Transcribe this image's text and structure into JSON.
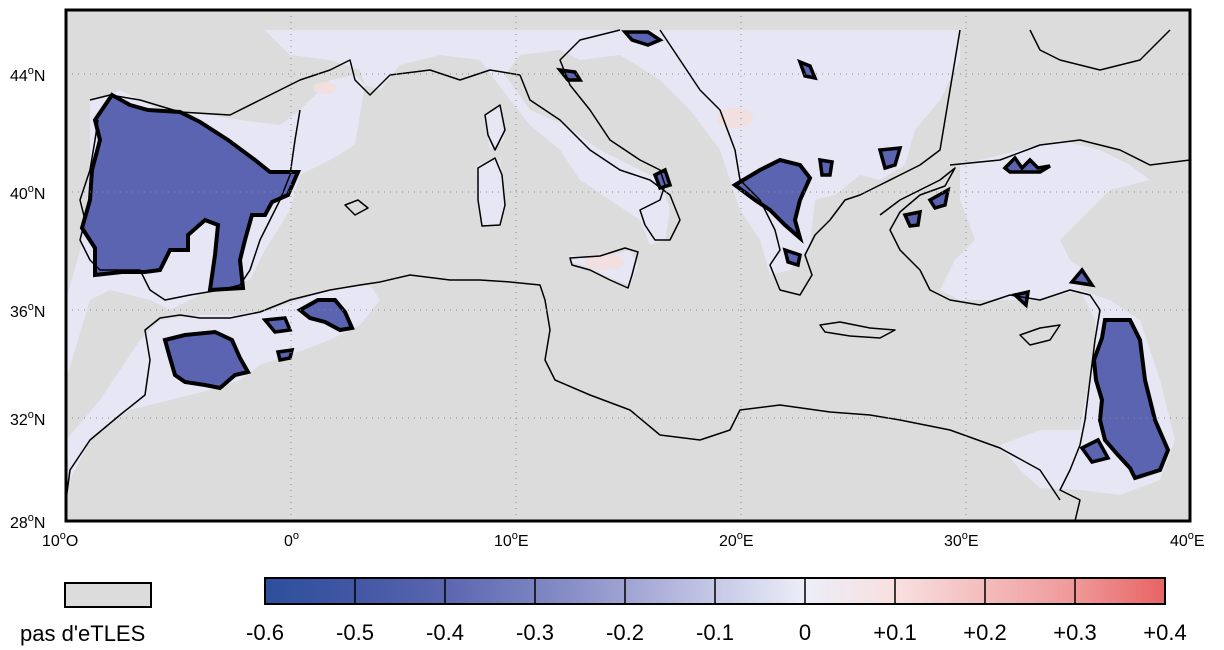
{
  "map": {
    "lat_labels": [
      "44",
      "40",
      "36",
      "32",
      "28"
    ],
    "lat_suffix": "N",
    "lon_labels": [
      "10",
      "0",
      "10",
      "20",
      "30",
      "40"
    ],
    "lon_suffixes": [
      "O",
      "",
      "E",
      "E",
      "E",
      "E"
    ],
    "degree_symbol": "o",
    "ocean_color": "#dcdcdc",
    "land_color": "#dcdcdc",
    "contour_color": "#000000"
  },
  "legend": {
    "missing_label": "pas d'eTLES",
    "missing_color": "#dcdcdc",
    "colorbar_ticks": [
      "-0.6",
      "-0.5",
      "-0.4",
      "-0.3",
      "-0.2",
      "-0.1",
      "0",
      "+0.1",
      "+0.2",
      "+0.3",
      "+0.4"
    ],
    "colorbar_colors": [
      "#2c4f9c",
      "#4257a4",
      "#5a66b0",
      "#7a82c0",
      "#9ea3d2",
      "#c6c8e6",
      "#eceef8",
      "#f8e0e0",
      "#f4bcbc",
      "#ef9898",
      "#e86464"
    ]
  }
}
